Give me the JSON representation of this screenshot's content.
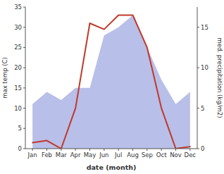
{
  "chart_data": {
    "type": "line",
    "xlabel": "date (month)",
    "ylabel": "max temp (C)",
    "y2label": "med. precipitation (kg/m2)",
    "categories": [
      "Jan",
      "Feb",
      "Mar",
      "Apr",
      "May",
      "Jun",
      "Jul",
      "Aug",
      "Sep",
      "Oct",
      "Nov",
      "Dec"
    ],
    "series": [
      {
        "type": "line",
        "color": "#c0392b",
        "values": [
          1.5,
          2.0,
          0.0,
          10.0,
          31.0,
          29.5,
          33.0,
          33.0,
          25.0,
          10.0,
          0.0,
          0.5
        ]
      },
      {
        "type": "area",
        "axis": "y2",
        "color": "#b8bfe8",
        "values": [
          5.5,
          7.0,
          6.0,
          7.5,
          7.5,
          14.0,
          15.0,
          16.5,
          12.5,
          8.5,
          5.5,
          7.0
        ]
      }
    ],
    "ylim": [
      0,
      35
    ],
    "yticks": [
      0,
      5,
      10,
      15,
      20,
      25,
      30,
      35
    ],
    "y2lim": [
      0,
      17.5
    ],
    "y2ticks": [
      0,
      5,
      10,
      15
    ],
    "grid": false
  }
}
